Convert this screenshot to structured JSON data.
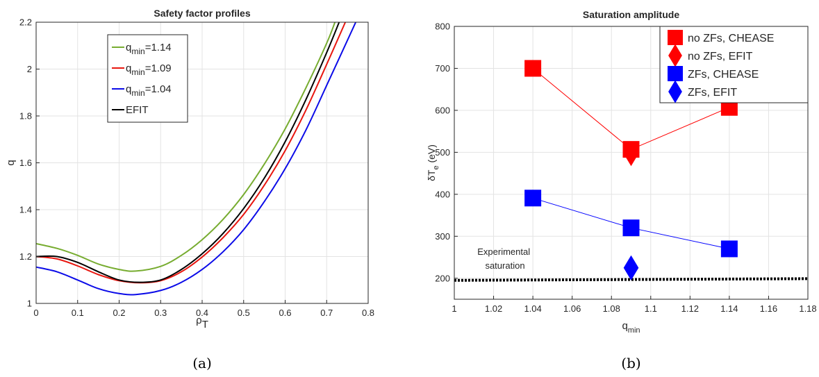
{
  "chart_data": [
    {
      "type": "line",
      "title": "Safety factor profiles",
      "xlabel": "ρ",
      "xlabel_sub": "T",
      "ylabel": "q",
      "xlim": [
        0,
        0.8
      ],
      "ylim": [
        1,
        2.2
      ],
      "xticks": [
        "0",
        "0.1",
        "0.2",
        "0.3",
        "0.4",
        "0.5",
        "0.6",
        "0.7",
        "0.8"
      ],
      "yticks": [
        "1",
        "1.2",
        "1.4",
        "1.6",
        "1.8",
        "2",
        "2.2"
      ],
      "grid": true,
      "legend_position": "upper-middle",
      "panel_label": "(a)",
      "series": [
        {
          "name": "q",
          "name_sub": "min",
          "name_suffix": "=1.14",
          "color": "#77ac30",
          "x": [
            0,
            0.05,
            0.1,
            0.15,
            0.2,
            0.24,
            0.3,
            0.35,
            0.4,
            0.45,
            0.5,
            0.55,
            0.6,
            0.65,
            0.7,
            0.72
          ],
          "y": [
            1.255,
            1.235,
            1.205,
            1.168,
            1.145,
            1.138,
            1.158,
            1.205,
            1.272,
            1.358,
            1.465,
            1.595,
            1.745,
            1.92,
            2.11,
            2.2
          ]
        },
        {
          "name": "q",
          "name_sub": "min",
          "name_suffix": "=1.09",
          "color": "#e8160f",
          "x": [
            0,
            0.05,
            0.1,
            0.15,
            0.2,
            0.25,
            0.3,
            0.35,
            0.4,
            0.45,
            0.5,
            0.55,
            0.6,
            0.65,
            0.7,
            0.745
          ],
          "y": [
            1.2,
            1.19,
            1.16,
            1.123,
            1.097,
            1.088,
            1.097,
            1.135,
            1.198,
            1.28,
            1.38,
            1.505,
            1.652,
            1.825,
            2.02,
            2.2
          ]
        },
        {
          "name": "q",
          "name_sub": "min",
          "name_suffix": "=1.04",
          "color": "#0b0be8",
          "x": [
            0,
            0.05,
            0.1,
            0.15,
            0.2,
            0.24,
            0.3,
            0.35,
            0.4,
            0.45,
            0.5,
            0.55,
            0.6,
            0.65,
            0.7,
            0.77
          ],
          "y": [
            1.155,
            1.135,
            1.1,
            1.063,
            1.042,
            1.038,
            1.055,
            1.09,
            1.145,
            1.22,
            1.315,
            1.435,
            1.575,
            1.74,
            1.93,
            2.2
          ]
        },
        {
          "name": "EFIT",
          "color": "#000000",
          "x": [
            0,
            0.05,
            0.1,
            0.15,
            0.2,
            0.25,
            0.3,
            0.35,
            0.4,
            0.45,
            0.5,
            0.55,
            0.6,
            0.65,
            0.7,
            0.73
          ],
          "y": [
            1.2,
            1.2,
            1.175,
            1.135,
            1.1,
            1.09,
            1.1,
            1.145,
            1.212,
            1.298,
            1.405,
            1.535,
            1.69,
            1.87,
            2.07,
            2.2
          ]
        }
      ]
    },
    {
      "type": "scatter",
      "title": "Saturation amplitude",
      "xlabel": "q",
      "xlabel_sub": "min",
      "ylabel": "δT",
      "ylabel_sub": "e",
      "ylabel_suffix": " (eV)",
      "xlim": [
        1,
        1.18
      ],
      "ylim": [
        150,
        800
      ],
      "xticks": [
        "1",
        "1.02",
        "1.04",
        "1.06",
        "1.08",
        "1.1",
        "1.12",
        "1.14",
        "1.16",
        "1.18"
      ],
      "yticks": [
        "200",
        "300",
        "400",
        "500",
        "600",
        "700",
        "800"
      ],
      "grid": true,
      "legend_position": "top-right",
      "panel_label": "(b)",
      "series": [
        {
          "name": "no ZFs, CHEASE",
          "marker": "square",
          "color": "#ff0000",
          "connected": true,
          "x": [
            1.04,
            1.09,
            1.14
          ],
          "y": [
            700,
            507,
            607
          ]
        },
        {
          "name": "no ZFs, EFIT",
          "marker": "diamond",
          "color": "#ff0000",
          "connected": false,
          "x": [
            1.09
          ],
          "y": [
            497
          ]
        },
        {
          "name": "ZFs, CHEASE",
          "marker": "square",
          "color": "#0000ff",
          "connected": true,
          "x": [
            1.04,
            1.09,
            1.14
          ],
          "y": [
            391,
            320,
            270
          ]
        },
        {
          "name": "ZFs, EFIT",
          "marker": "diamond",
          "color": "#0000ff",
          "connected": false,
          "x": [
            1.09
          ],
          "y": [
            225
          ]
        }
      ],
      "reference_line": {
        "style": "dotted",
        "color": "#000000",
        "x": [
          1,
          1.18
        ],
        "y": [
          195,
          199
        ]
      },
      "annotation": [
        "Experimental",
        "saturation"
      ]
    }
  ]
}
